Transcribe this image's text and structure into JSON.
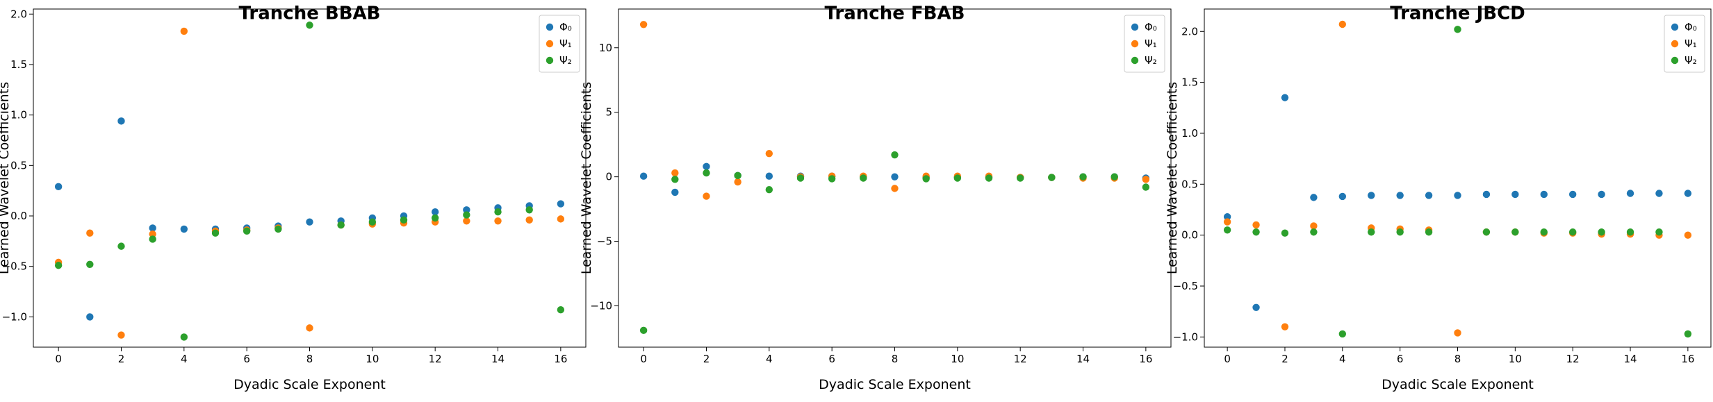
{
  "colors": {
    "phi0": "#1f77b4",
    "psi1": "#ff7f0e",
    "psi2": "#2ca02c"
  },
  "chart_data": [
    {
      "type": "scatter",
      "title": "Tranche BBAB",
      "xlabel": "Dyadic Scale Exponent",
      "ylabel": "Learned Wavelet Coefficients",
      "xlim": [
        -0.8,
        16.8
      ],
      "ylim": [
        -1.3,
        2.05
      ],
      "xticks": [
        0,
        2,
        4,
        6,
        8,
        10,
        12,
        14,
        16
      ],
      "yticks": [
        -1.0,
        -0.5,
        0.0,
        0.5,
        1.0,
        1.5,
        2.0
      ],
      "ytick_labels": [
        "−1.0",
        "−0.5",
        "0.0",
        "0.5",
        "1.0",
        "1.5",
        "2.0"
      ],
      "legend": "top-right",
      "x": [
        0,
        1,
        2,
        3,
        4,
        5,
        6,
        7,
        8,
        9,
        10,
        11,
        12,
        13,
        14,
        15,
        16
      ],
      "series": [
        {
          "name": "Φ₀",
          "color": "#1f77b4",
          "values": [
            0.29,
            -1.0,
            0.94,
            -0.12,
            -0.13,
            -0.13,
            -0.12,
            -0.1,
            -0.06,
            -0.05,
            -0.02,
            0.0,
            0.04,
            0.06,
            0.08,
            0.1,
            0.12
          ]
        },
        {
          "name": "Ψ₁",
          "color": "#ff7f0e",
          "values": [
            -0.46,
            -0.17,
            -1.18,
            -0.18,
            1.83,
            -0.15,
            -0.14,
            -0.12,
            -1.11,
            -0.09,
            -0.08,
            -0.07,
            -0.06,
            -0.05,
            -0.05,
            -0.04,
            -0.03
          ]
        },
        {
          "name": "Ψ₂",
          "color": "#2ca02c",
          "values": [
            -0.49,
            -0.48,
            -0.3,
            -0.23,
            -1.2,
            -0.17,
            -0.15,
            -0.13,
            1.89,
            -0.09,
            -0.06,
            -0.04,
            -0.02,
            0.01,
            0.04,
            0.06,
            -0.93
          ]
        }
      ]
    },
    {
      "type": "scatter",
      "title": "Tranche FBAB",
      "xlabel": "Dyadic Scale Exponent",
      "ylabel": "Learned Wavelet Coefficients",
      "xlim": [
        -0.8,
        16.8
      ],
      "ylim": [
        -13.2,
        13.0
      ],
      "xticks": [
        0,
        2,
        4,
        6,
        8,
        10,
        12,
        14,
        16
      ],
      "yticks": [
        -10,
        -5,
        0,
        5,
        10
      ],
      "ytick_labels": [
        "−10",
        "−5",
        "0",
        "5",
        "10"
      ],
      "legend": "top-right",
      "x": [
        0,
        1,
        2,
        3,
        4,
        5,
        6,
        7,
        8,
        9,
        10,
        11,
        12,
        13,
        14,
        15,
        16
      ],
      "series": [
        {
          "name": "Φ₀",
          "color": "#1f77b4",
          "values": [
            0.05,
            -1.2,
            0.8,
            0.1,
            0.05,
            0.05,
            0.05,
            0.0,
            0.0,
            -0.05,
            -0.05,
            -0.05,
            -0.05,
            -0.05,
            0.0,
            0.0,
            -0.1
          ]
        },
        {
          "name": "Ψ₁",
          "color": "#ff7f0e",
          "values": [
            11.8,
            0.3,
            -1.5,
            -0.4,
            1.8,
            0.0,
            0.05,
            0.05,
            -0.9,
            0.05,
            0.05,
            0.05,
            -0.05,
            -0.05,
            -0.1,
            -0.1,
            -0.2
          ]
        },
        {
          "name": "Ψ₂",
          "color": "#2ca02c",
          "values": [
            -11.9,
            -0.2,
            0.3,
            0.1,
            -1.0,
            -0.1,
            -0.15,
            -0.1,
            1.7,
            -0.15,
            -0.1,
            -0.1,
            -0.1,
            -0.05,
            0.0,
            0.0,
            -0.8
          ]
        }
      ]
    },
    {
      "type": "scatter",
      "title": "Tranche JBCD",
      "xlabel": "Dyadic Scale Exponent",
      "ylabel": "Learned Wavelet Coefficients",
      "xlim": [
        -0.8,
        16.8
      ],
      "ylim": [
        -1.1,
        2.22
      ],
      "xticks": [
        0,
        2,
        4,
        6,
        8,
        10,
        12,
        14,
        16
      ],
      "yticks": [
        -1.0,
        -0.5,
        0.0,
        0.5,
        1.0,
        1.5,
        2.0
      ],
      "ytick_labels": [
        "−1.0",
        "−0.5",
        "0.0",
        "0.5",
        "1.0",
        "1.5",
        "2.0"
      ],
      "legend": "top-right",
      "x": [
        0,
        1,
        2,
        3,
        4,
        5,
        6,
        7,
        8,
        9,
        10,
        11,
        12,
        13,
        14,
        15,
        16
      ],
      "series": [
        {
          "name": "Φ₀",
          "color": "#1f77b4",
          "values": [
            0.18,
            -0.71,
            1.35,
            0.37,
            0.38,
            0.39,
            0.39,
            0.39,
            0.39,
            0.4,
            0.4,
            0.4,
            0.4,
            0.4,
            0.41,
            0.41,
            0.41
          ]
        },
        {
          "name": "Ψ₁",
          "color": "#ff7f0e",
          "values": [
            0.13,
            0.1,
            -0.9,
            0.09,
            2.07,
            0.07,
            0.06,
            0.05,
            -0.96,
            0.03,
            0.03,
            0.02,
            0.02,
            0.01,
            0.01,
            0.0,
            0.0
          ]
        },
        {
          "name": "Ψ₂",
          "color": "#2ca02c",
          "values": [
            0.05,
            0.03,
            0.02,
            0.03,
            -0.97,
            0.03,
            0.03,
            0.03,
            2.02,
            0.03,
            0.03,
            0.03,
            0.03,
            0.03,
            0.03,
            0.03,
            -0.97
          ]
        }
      ]
    }
  ]
}
